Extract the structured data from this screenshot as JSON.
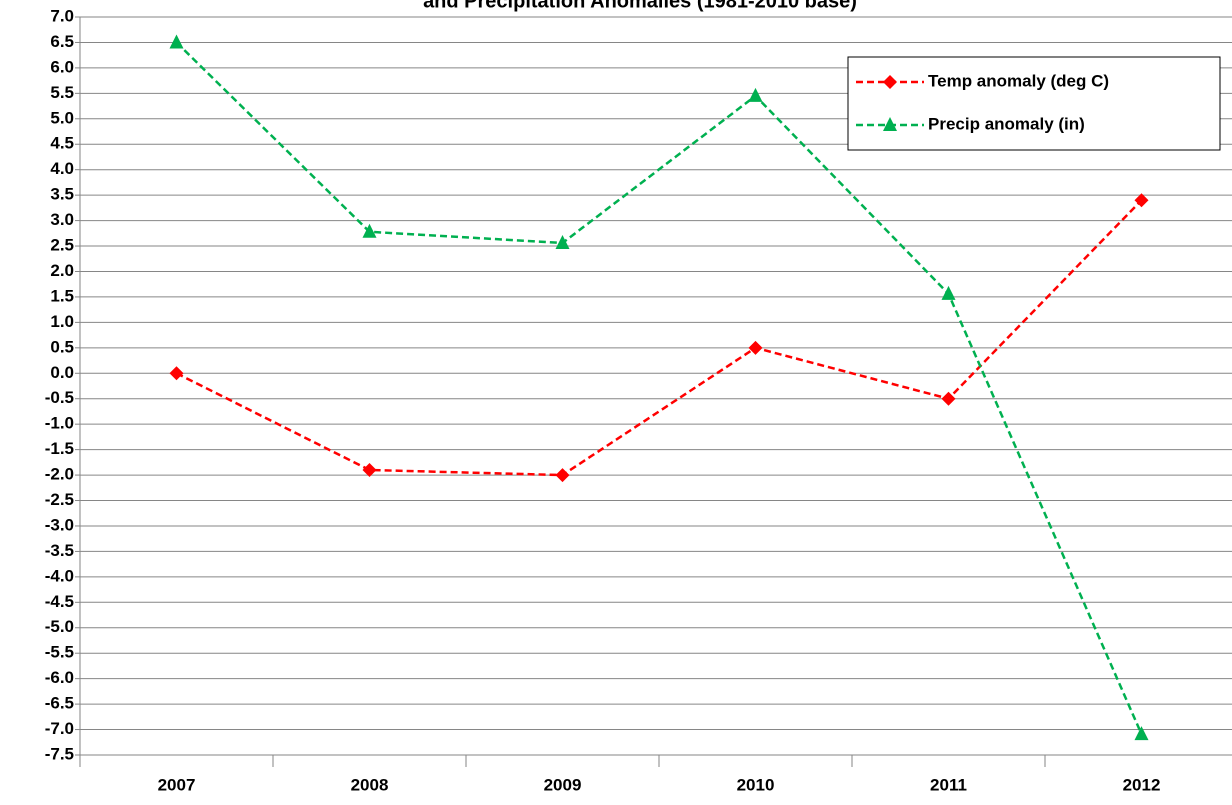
{
  "chart_data": {
    "type": "line",
    "title": "and Precipitation Anomalies (1981-2010 base)",
    "categories": [
      "2007",
      "2008",
      "2009",
      "2010",
      "2011",
      "2012"
    ],
    "series": [
      {
        "name": "Temp anomaly (deg C)",
        "color": "#ff0000",
        "marker": "diamond",
        "values": [
          0,
          -1.9,
          -2.0,
          0.5,
          -0.5,
          3.4
        ]
      },
      {
        "name": "Precip anomaly (in)",
        "color": "#00b050",
        "marker": "triangle",
        "values": [
          6.5,
          2.78,
          2.56,
          5.45,
          1.56,
          -7.09
        ]
      }
    ],
    "ylim": [
      -7.5,
      7
    ],
    "yticks": [
      {
        "value": -7.5,
        "label": "-7.5"
      },
      {
        "value": -7,
        "label": "-7.0"
      },
      -6.5,
      {
        "value": -6,
        "label": "-6.0"
      },
      -5.5,
      {
        "value": -5,
        "label": "-5.0"
      },
      -4.5,
      {
        "value": -4,
        "label": "-4.0"
      },
      -3.5,
      {
        "value": -3,
        "label": "-3.0"
      },
      -2.5,
      {
        "value": -2,
        "label": "-2.0"
      },
      -1.5,
      {
        "value": -1,
        "label": "-1.0"
      },
      -0.5,
      {
        "value": 0,
        "label": "0.0"
      },
      0.5,
      {
        "value": 1,
        "label": "1.0"
      },
      1.5,
      {
        "value": 2,
        "label": "2.0"
      },
      2.5,
      {
        "value": 3,
        "label": "3.0"
      },
      3.5,
      {
        "value": 4,
        "label": "4.0"
      },
      4.5,
      {
        "value": 5,
        "label": "5.0"
      },
      5.5,
      {
        "value": 6,
        "label": "6.0"
      },
      6.5,
      {
        "value": 7,
        "label": "7.0"
      }
    ],
    "grid": true,
    "legend": "upper right"
  }
}
